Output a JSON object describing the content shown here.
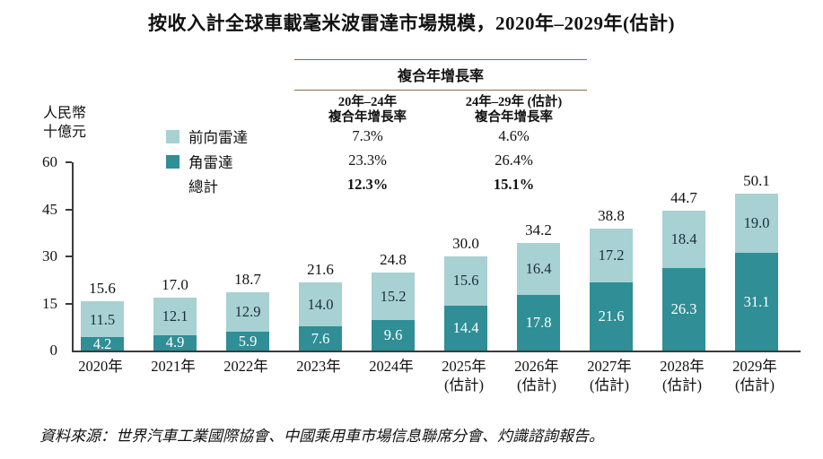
{
  "title": "按收入計全球車載毫米波雷達市場規模，2020年–2029年(估計)",
  "y_axis_unit": [
    "人民幣",
    "十億元"
  ],
  "cagr_table": {
    "header": "複合年增長率",
    "columns": [
      {
        "line1": "20年–24年",
        "line2": "複合年增長率"
      },
      {
        "line1": "24年–29年 (估計)",
        "line2": "複合年增長率"
      }
    ],
    "rows": [
      {
        "label": "前向雷達",
        "values": [
          "7.3%",
          "4.6%"
        ],
        "bold": false
      },
      {
        "label": "角雷達",
        "values": [
          "23.3%",
          "26.4%"
        ],
        "bold": false
      },
      {
        "label": "總計",
        "values": [
          "12.3%",
          "15.1%"
        ],
        "bold": true
      }
    ]
  },
  "legend": [
    {
      "label": "前向雷達",
      "swatch": "forward_radar"
    },
    {
      "label": "角雷達",
      "swatch": "corner_radar"
    },
    {
      "label": "總計",
      "swatch": null
    }
  ],
  "chart_data": {
    "type": "bar",
    "stacked": true,
    "title": "按收入計全球車載毫米波雷達市場規模，2020年–2029年(估計)",
    "ylabel": "人民幣十億元",
    "xlabel": "",
    "ylim": [
      0,
      60
    ],
    "y_ticks": [
      0,
      15,
      30,
      45,
      60
    ],
    "grid": false,
    "legend_position": "top-left",
    "categories": [
      {
        "label": "2020年",
        "sublabel": ""
      },
      {
        "label": "2021年",
        "sublabel": ""
      },
      {
        "label": "2022年",
        "sublabel": ""
      },
      {
        "label": "2023年",
        "sublabel": ""
      },
      {
        "label": "2024年",
        "sublabel": ""
      },
      {
        "label": "2025年",
        "sublabel": "(估計)"
      },
      {
        "label": "2026年",
        "sublabel": "(估計)"
      },
      {
        "label": "2027年",
        "sublabel": "(估計)"
      },
      {
        "label": "2028年",
        "sublabel": "(估計)"
      },
      {
        "label": "2029年",
        "sublabel": "(估計)"
      }
    ],
    "series": [
      {
        "name": "角雷達",
        "color_key": "corner_radar",
        "values": [
          4.2,
          4.9,
          5.9,
          7.6,
          9.6,
          14.4,
          17.8,
          21.6,
          26.3,
          31.1
        ]
      },
      {
        "name": "前向雷達",
        "color_key": "forward_radar",
        "values": [
          11.5,
          12.1,
          12.9,
          14.0,
          15.2,
          15.6,
          16.4,
          17.2,
          18.4,
          19.0
        ]
      }
    ],
    "totals": [
      15.6,
      17.0,
      18.7,
      21.6,
      24.8,
      30.0,
      34.2,
      38.8,
      44.7,
      50.1
    ]
  },
  "colors": {
    "forward_radar": "#A8D1D3",
    "corner_radar": "#2F8E96",
    "table_rule": "#8A6D4A",
    "axis": "#3B3B3B"
  },
  "source": "資料來源：世界汽車工業國際協會、中國乘用車市場信息聯席分會、灼識諮詢報告。"
}
